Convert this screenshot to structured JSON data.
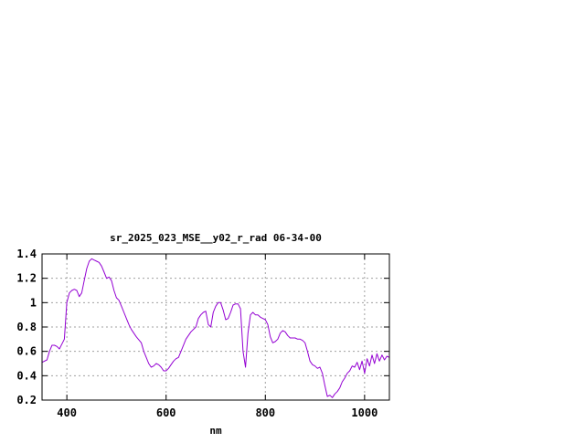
{
  "chart_data": {
    "type": "line",
    "title": "sr_2025_023_MSE__y02_r_rad 06-34-00",
    "xlabel": "nm",
    "ylabel": "",
    "xlim": [
      350,
      1050
    ],
    "ylim": [
      0.2,
      1.4
    ],
    "x_ticks": [
      400,
      600,
      800,
      1000
    ],
    "x_tick_labels": [
      "400",
      "600",
      "800",
      "1000"
    ],
    "y_ticks": [
      0.2,
      0.4,
      0.6,
      0.8,
      1.0,
      1.2,
      1.4
    ],
    "y_tick_labels": [
      "0.2",
      "0.4",
      "0.6",
      "0.8",
      "1",
      "1.2",
      "1.4"
    ],
    "grid": true,
    "legend": "none",
    "series": [
      {
        "color": "#9400d3",
        "x": [
          350,
          360,
          365,
          370,
          375,
          380,
          385,
          390,
          395,
          400,
          405,
          410,
          415,
          420,
          425,
          430,
          435,
          440,
          445,
          450,
          455,
          460,
          465,
          470,
          475,
          480,
          485,
          490,
          495,
          500,
          505,
          510,
          515,
          520,
          525,
          530,
          540,
          550,
          555,
          560,
          565,
          570,
          575,
          580,
          585,
          590,
          595,
          600,
          605,
          610,
          615,
          620,
          625,
          630,
          640,
          650,
          660,
          665,
          670,
          675,
          680,
          685,
          690,
          695,
          700,
          705,
          710,
          715,
          720,
          725,
          730,
          735,
          740,
          745,
          750,
          755,
          760,
          765,
          770,
          775,
          780,
          785,
          790,
          795,
          800,
          805,
          810,
          815,
          820,
          825,
          830,
          835,
          840,
          845,
          850,
          855,
          860,
          865,
          870,
          875,
          880,
          885,
          890,
          895,
          900,
          905,
          910,
          915,
          920,
          925,
          930,
          935,
          940,
          945,
          950,
          955,
          960,
          965,
          970,
          975,
          980,
          985,
          990,
          995,
          1000,
          1005,
          1010,
          1015,
          1020,
          1025,
          1030,
          1035,
          1040,
          1045,
          1050
        ],
        "y": [
          0.51,
          0.53,
          0.6,
          0.65,
          0.65,
          0.64,
          0.62,
          0.66,
          0.7,
          1.0,
          1.08,
          1.1,
          1.11,
          1.1,
          1.05,
          1.08,
          1.18,
          1.28,
          1.34,
          1.36,
          1.35,
          1.34,
          1.33,
          1.3,
          1.25,
          1.2,
          1.21,
          1.18,
          1.1,
          1.04,
          1.02,
          0.97,
          0.92,
          0.87,
          0.82,
          0.78,
          0.72,
          0.67,
          0.6,
          0.55,
          0.5,
          0.47,
          0.48,
          0.5,
          0.49,
          0.47,
          0.44,
          0.44,
          0.46,
          0.49,
          0.52,
          0.54,
          0.55,
          0.6,
          0.7,
          0.76,
          0.8,
          0.87,
          0.9,
          0.92,
          0.93,
          0.82,
          0.8,
          0.92,
          0.97,
          1.0,
          1.0,
          0.94,
          0.86,
          0.87,
          0.92,
          0.98,
          0.99,
          0.99,
          0.95,
          0.6,
          0.47,
          0.75,
          0.9,
          0.92,
          0.9,
          0.9,
          0.88,
          0.87,
          0.86,
          0.82,
          0.72,
          0.67,
          0.68,
          0.7,
          0.75,
          0.77,
          0.76,
          0.73,
          0.71,
          0.71,
          0.71,
          0.7,
          0.7,
          0.69,
          0.67,
          0.6,
          0.52,
          0.49,
          0.48,
          0.46,
          0.47,
          0.42,
          0.32,
          0.23,
          0.24,
          0.22,
          0.25,
          0.27,
          0.3,
          0.35,
          0.38,
          0.42,
          0.44,
          0.48,
          0.47,
          0.51,
          0.45,
          0.52,
          0.42,
          0.54,
          0.48,
          0.57,
          0.5,
          0.58,
          0.52,
          0.57,
          0.53,
          0.56,
          0.55
        ]
      }
    ]
  },
  "colors": {
    "background": "#ffffff",
    "frame": "#000000",
    "grid": "#a0a0a0",
    "series": "#9400d3"
  }
}
